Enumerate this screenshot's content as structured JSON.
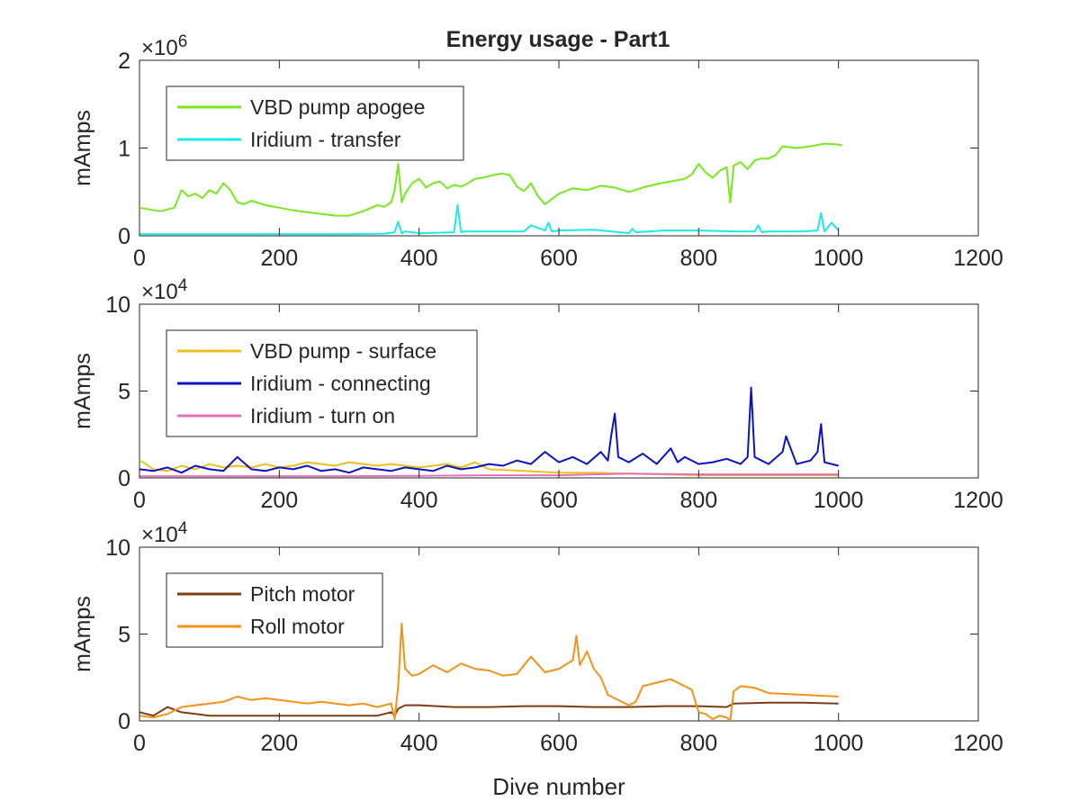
{
  "figure": {
    "title": "Energy usage - Part1"
  },
  "chart_data": [
    {
      "type": "line",
      "title": "Energy usage - Part1",
      "xlabel": "",
      "ylabel": "mAmps",
      "xlim": [
        0,
        1200
      ],
      "ylim": [
        0,
        2000000
      ],
      "x_ticks": [
        0,
        200,
        400,
        600,
        800,
        1000,
        1200
      ],
      "x_tick_labels": [
        "0",
        "200",
        "400",
        "600",
        "800",
        "1000",
        "1200"
      ],
      "y_ticks": [
        0,
        1000000,
        2000000
      ],
      "y_tick_labels": [
        "0",
        "1",
        "2"
      ],
      "y_exponent_label": "×10^6",
      "y_exponent_base": "×10",
      "y_exponent_power": "6",
      "legend_position": "top-left",
      "grid": false,
      "series": [
        {
          "name": "VBD pump apogee",
          "color": "#77ea1e",
          "x": [
            0,
            15,
            30,
            50,
            60,
            70,
            80,
            90,
            100,
            110,
            120,
            130,
            140,
            150,
            160,
            180,
            200,
            220,
            240,
            260,
            280,
            300,
            320,
            340,
            350,
            360,
            365,
            370,
            375,
            380,
            390,
            400,
            410,
            420,
            430,
            440,
            450,
            460,
            470,
            480,
            490,
            500,
            510,
            520,
            530,
            540,
            550,
            560,
            570,
            580,
            590,
            600,
            620,
            640,
            660,
            680,
            700,
            720,
            740,
            760,
            780,
            790,
            800,
            810,
            820,
            830,
            840,
            845,
            850,
            860,
            870,
            880,
            890,
            900,
            910,
            920,
            940,
            960,
            980,
            1000,
            1005
          ],
          "y": [
            320000,
            300000,
            280000,
            320000,
            520000,
            450000,
            480000,
            430000,
            520000,
            480000,
            600000,
            520000,
            380000,
            360000,
            400000,
            350000,
            320000,
            290000,
            270000,
            250000,
            230000,
            230000,
            280000,
            350000,
            330000,
            380000,
            520000,
            820000,
            380000,
            480000,
            600000,
            650000,
            550000,
            600000,
            620000,
            540000,
            580000,
            560000,
            600000,
            650000,
            660000,
            680000,
            700000,
            710000,
            690000,
            560000,
            510000,
            600000,
            450000,
            360000,
            420000,
            480000,
            540000,
            520000,
            570000,
            550000,
            500000,
            550000,
            590000,
            620000,
            650000,
            700000,
            820000,
            720000,
            660000,
            740000,
            780000,
            380000,
            800000,
            840000,
            760000,
            860000,
            880000,
            880000,
            920000,
            1020000,
            1000000,
            1020000,
            1050000,
            1040000,
            1030000
          ]
        },
        {
          "name": "Iridium - transfer",
          "color": "#1de9e9",
          "x": [
            0,
            50,
            100,
            150,
            200,
            250,
            300,
            350,
            365,
            370,
            375,
            380,
            400,
            450,
            455,
            460,
            465,
            500,
            550,
            560,
            580,
            585,
            590,
            600,
            650,
            700,
            705,
            710,
            750,
            800,
            850,
            880,
            885,
            890,
            900,
            950,
            970,
            975,
            980,
            990,
            1000
          ],
          "y": [
            20000,
            20000,
            20000,
            20000,
            20000,
            20000,
            20000,
            25000,
            40000,
            160000,
            30000,
            50000,
            30000,
            40000,
            350000,
            40000,
            50000,
            50000,
            50000,
            120000,
            60000,
            150000,
            50000,
            60000,
            70000,
            30000,
            80000,
            40000,
            60000,
            60000,
            50000,
            50000,
            120000,
            40000,
            50000,
            50000,
            60000,
            260000,
            50000,
            150000,
            60000
          ]
        }
      ]
    },
    {
      "type": "line",
      "title": "",
      "xlabel": "",
      "ylabel": "mAmps",
      "xlim": [
        0,
        1200
      ],
      "ylim": [
        0,
        100000
      ],
      "x_ticks": [
        0,
        200,
        400,
        600,
        800,
        1000,
        1200
      ],
      "x_tick_labels": [
        "0",
        "200",
        "400",
        "600",
        "800",
        "1000",
        "1200"
      ],
      "y_ticks": [
        0,
        50000,
        100000
      ],
      "y_tick_labels": [
        "0",
        "5",
        "10"
      ],
      "y_exponent_label": "×10^4",
      "y_exponent_base": "×10",
      "y_exponent_power": "4",
      "legend_position": "top-left",
      "grid": false,
      "series": [
        {
          "name": "VBD pump - surface",
          "color": "#edc11b",
          "x": [
            0,
            5,
            20,
            40,
            60,
            80,
            100,
            120,
            140,
            160,
            180,
            200,
            220,
            240,
            260,
            280,
            300,
            320,
            340,
            360,
            380,
            400,
            420,
            440,
            460,
            480,
            500,
            550,
            600,
            650,
            700,
            750,
            800,
            850,
            900,
            950,
            1000
          ],
          "y": [
            10000,
            9000,
            5000,
            4000,
            7000,
            5000,
            8000,
            6000,
            7000,
            6000,
            8000,
            6000,
            7000,
            9000,
            8000,
            7000,
            9000,
            8000,
            7000,
            8000,
            7000,
            6000,
            7000,
            8000,
            6000,
            9000,
            5000,
            4000,
            3000,
            3000,
            2500,
            2000,
            1500,
            1500,
            1500,
            1500,
            1500
          ]
        },
        {
          "name": "Iridium - connecting",
          "color": "#0b13c3",
          "x": [
            0,
            20,
            40,
            60,
            80,
            100,
            120,
            140,
            160,
            180,
            200,
            220,
            240,
            260,
            280,
            300,
            320,
            340,
            360,
            380,
            400,
            420,
            440,
            460,
            480,
            500,
            520,
            540,
            560,
            580,
            600,
            620,
            640,
            660,
            670,
            675,
            680,
            685,
            700,
            720,
            740,
            760,
            770,
            780,
            800,
            820,
            840,
            860,
            870,
            875,
            880,
            900,
            920,
            925,
            940,
            960,
            970,
            975,
            980,
            1000
          ],
          "y": [
            5000,
            4000,
            6000,
            3000,
            7000,
            5000,
            4000,
            12000,
            5000,
            4000,
            6000,
            5000,
            7000,
            4000,
            5000,
            3000,
            6000,
            5000,
            4000,
            6000,
            5000,
            4000,
            7000,
            5000,
            6000,
            8000,
            7000,
            10000,
            8000,
            15000,
            9000,
            12000,
            8000,
            15000,
            10000,
            25000,
            37000,
            12000,
            9000,
            14000,
            8000,
            17000,
            9000,
            12000,
            8000,
            9000,
            11000,
            8000,
            12000,
            52000,
            12000,
            8000,
            15000,
            24000,
            8000,
            10000,
            15000,
            31000,
            9000,
            7000
          ]
        },
        {
          "name": "Iridium - turn on",
          "color": "#e46fbc",
          "x": [
            0,
            100,
            200,
            300,
            400,
            500,
            600,
            650,
            700,
            800,
            900,
            1000
          ],
          "y": [
            1000,
            1000,
            1000,
            1000,
            1200,
            1500,
            1500,
            2000,
            2500,
            2000,
            2000,
            2000
          ]
        }
      ]
    },
    {
      "type": "line",
      "title": "",
      "xlabel": "Dive number",
      "ylabel": "mAmps",
      "xlim": [
        0,
        1200
      ],
      "ylim": [
        0,
        100000
      ],
      "x_ticks": [
        0,
        200,
        400,
        600,
        800,
        1000,
        1200
      ],
      "x_tick_labels": [
        "0",
        "200",
        "400",
        "600",
        "800",
        "1000",
        "1200"
      ],
      "y_ticks": [
        0,
        50000,
        100000
      ],
      "y_tick_labels": [
        "0",
        "5",
        "10"
      ],
      "y_exponent_label": "×10^4",
      "y_exponent_base": "×10",
      "y_exponent_power": "4",
      "legend_position": "top-left",
      "grid": false,
      "series": [
        {
          "name": "Pitch motor",
          "color": "#7e3c13",
          "x": [
            0,
            20,
            40,
            60,
            80,
            100,
            150,
            200,
            250,
            300,
            340,
            350,
            360,
            365,
            370,
            380,
            400,
            450,
            500,
            550,
            600,
            650,
            700,
            750,
            800,
            840,
            850,
            900,
            950,
            1000
          ],
          "y": [
            5000,
            3000,
            8000,
            5000,
            4000,
            3000,
            3000,
            3000,
            3000,
            3000,
            3000,
            4000,
            5000,
            3000,
            7000,
            9000,
            9000,
            8000,
            8000,
            8500,
            8500,
            8000,
            8000,
            8500,
            8500,
            8000,
            10000,
            10500,
            10500,
            10000
          ]
        },
        {
          "name": "Roll motor",
          "color": "#f29319",
          "x": [
            0,
            20,
            40,
            60,
            80,
            100,
            120,
            140,
            160,
            180,
            200,
            220,
            240,
            260,
            280,
            300,
            320,
            340,
            360,
            365,
            370,
            375,
            380,
            390,
            400,
            420,
            440,
            460,
            480,
            500,
            520,
            540,
            560,
            580,
            600,
            620,
            625,
            630,
            640,
            650,
            660,
            670,
            680,
            700,
            710,
            720,
            740,
            760,
            780,
            790,
            800,
            810,
            820,
            830,
            840,
            845,
            850,
            860,
            880,
            900,
            950,
            1000
          ],
          "y": [
            3000,
            2000,
            4000,
            8000,
            9000,
            10000,
            11000,
            14000,
            12000,
            13000,
            12000,
            11000,
            10000,
            11000,
            10000,
            9000,
            10000,
            8000,
            10000,
            1000,
            20000,
            56000,
            30000,
            26000,
            27000,
            32000,
            28000,
            33000,
            30000,
            29000,
            26000,
            27000,
            37000,
            28000,
            30000,
            35000,
            49000,
            32000,
            40000,
            30000,
            25000,
            15000,
            13000,
            9000,
            11000,
            20000,
            22000,
            24000,
            20000,
            18000,
            5000,
            4000,
            1000,
            3000,
            2000,
            0,
            17000,
            20000,
            19000,
            16000,
            15000,
            14000
          ]
        }
      ]
    }
  ]
}
